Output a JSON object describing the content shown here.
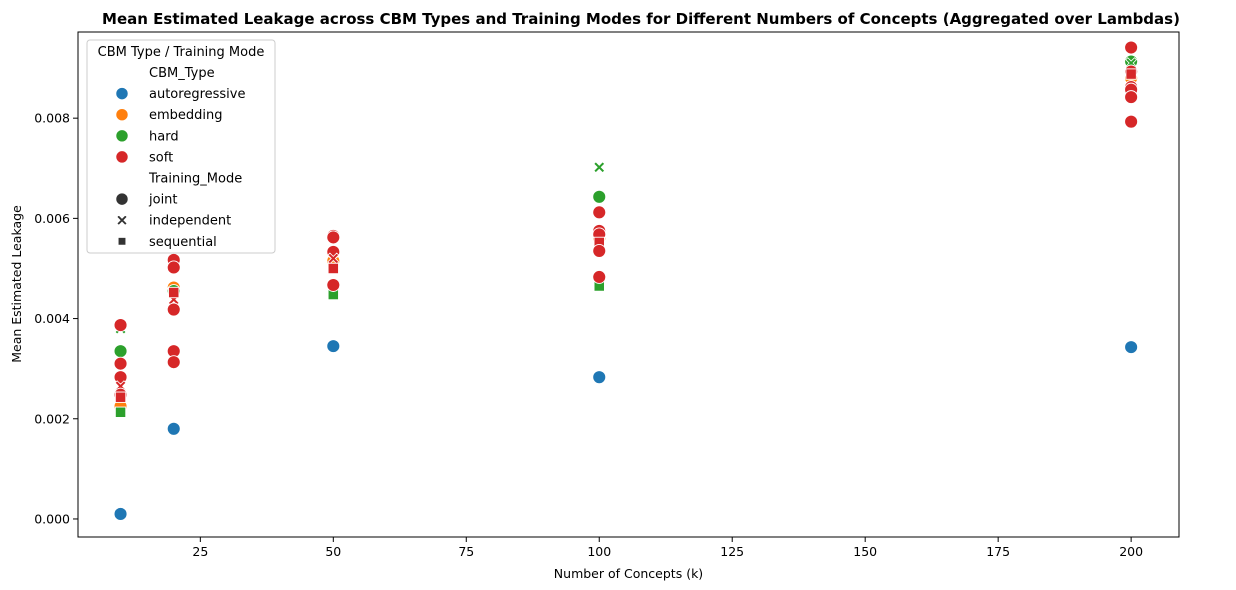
{
  "chart_data": {
    "type": "scatter",
    "title": "Mean Estimated Leakage across CBM Types and Training Modes for Different Numbers of Concepts (Aggregated over Lambdas)",
    "xlabel": "Number of Concepts (k)",
    "ylabel": "Mean Estimated Leakage",
    "xlim": [
      2,
      209
    ],
    "ylim": [
      -0.00036,
      0.00972
    ],
    "x_ticks": [
      25,
      50,
      75,
      100,
      125,
      150,
      175,
      200
    ],
    "y_ticks": [
      0.0,
      0.002,
      0.004,
      0.006,
      0.008
    ],
    "y_tick_labels": [
      "0.000",
      "0.002",
      "0.004",
      "0.006",
      "0.008"
    ],
    "grid": false,
    "legend": {
      "title": "CBM Type / Training Mode",
      "placement": "top-left",
      "hue_title": "CBM_Type",
      "style_title": "Training_Mode",
      "hue_entries": [
        {
          "label": "autoregressive",
          "color": "#1f77b4"
        },
        {
          "label": "embedding",
          "color": "#ff7f0e"
        },
        {
          "label": "hard",
          "color": "#2ca02c"
        },
        {
          "label": "soft",
          "color": "#d62728"
        }
      ],
      "style_entries": [
        {
          "label": "joint",
          "marker": "circle"
        },
        {
          "label": "independent",
          "marker": "x"
        },
        {
          "label": "sequential",
          "marker": "square"
        }
      ]
    },
    "colors": {
      "autoregressive": "#1f77b4",
      "embedding": "#ff7f0e",
      "hard": "#2ca02c",
      "soft": "#d62728"
    },
    "points": [
      {
        "x": 10,
        "y": 0.0001,
        "type": "autoregressive",
        "mode": "joint"
      },
      {
        "x": 20,
        "y": 0.0018,
        "type": "autoregressive",
        "mode": "joint"
      },
      {
        "x": 50,
        "y": 0.00345,
        "type": "autoregressive",
        "mode": "joint"
      },
      {
        "x": 100,
        "y": 0.00283,
        "type": "autoregressive",
        "mode": "joint"
      },
      {
        "x": 200,
        "y": 0.00343,
        "type": "autoregressive",
        "mode": "joint"
      },
      {
        "x": 10,
        "y": 0.00225,
        "type": "embedding",
        "mode": "joint"
      },
      {
        "x": 20,
        "y": 0.00462,
        "type": "embedding",
        "mode": "joint"
      },
      {
        "x": 50,
        "y": 0.00515,
        "type": "embedding",
        "mode": "joint"
      },
      {
        "x": 100,
        "y": 0.0056,
        "type": "embedding",
        "mode": "joint"
      },
      {
        "x": 200,
        "y": 0.0088,
        "type": "embedding",
        "mode": "joint"
      },
      {
        "x": 10,
        "y": 0.0038,
        "type": "hard",
        "mode": "independent"
      },
      {
        "x": 10,
        "y": 0.00335,
        "type": "hard",
        "mode": "joint"
      },
      {
        "x": 10,
        "y": 0.00213,
        "type": "hard",
        "mode": "sequential"
      },
      {
        "x": 20,
        "y": 0.00455,
        "type": "hard",
        "mode": "joint"
      },
      {
        "x": 50,
        "y": 0.00448,
        "type": "hard",
        "mode": "sequential"
      },
      {
        "x": 100,
        "y": 0.00702,
        "type": "hard",
        "mode": "independent"
      },
      {
        "x": 100,
        "y": 0.00643,
        "type": "hard",
        "mode": "joint"
      },
      {
        "x": 100,
        "y": 0.00465,
        "type": "hard",
        "mode": "sequential"
      },
      {
        "x": 200,
        "y": 0.00913,
        "type": "hard",
        "mode": "joint"
      },
      {
        "x": 200,
        "y": 0.0091,
        "type": "hard",
        "mode": "independent"
      },
      {
        "x": 10,
        "y": 0.00387,
        "type": "soft",
        "mode": "joint"
      },
      {
        "x": 10,
        "y": 0.0031,
        "type": "soft",
        "mode": "joint"
      },
      {
        "x": 10,
        "y": 0.00283,
        "type": "soft",
        "mode": "joint"
      },
      {
        "x": 10,
        "y": 0.00265,
        "type": "soft",
        "mode": "independent"
      },
      {
        "x": 10,
        "y": 0.00248,
        "type": "soft",
        "mode": "joint"
      },
      {
        "x": 10,
        "y": 0.00243,
        "type": "soft",
        "mode": "sequential"
      },
      {
        "x": 20,
        "y": 0.00517,
        "type": "soft",
        "mode": "joint"
      },
      {
        "x": 20,
        "y": 0.00502,
        "type": "soft",
        "mode": "joint"
      },
      {
        "x": 20,
        "y": 0.00438,
        "type": "soft",
        "mode": "independent"
      },
      {
        "x": 20,
        "y": 0.00452,
        "type": "soft",
        "mode": "sequential"
      },
      {
        "x": 20,
        "y": 0.00418,
        "type": "soft",
        "mode": "joint"
      },
      {
        "x": 20,
        "y": 0.00335,
        "type": "soft",
        "mode": "joint"
      },
      {
        "x": 20,
        "y": 0.00313,
        "type": "soft",
        "mode": "joint"
      },
      {
        "x": 50,
        "y": 0.00565,
        "type": "soft",
        "mode": "joint"
      },
      {
        "x": 50,
        "y": 0.00562,
        "type": "soft",
        "mode": "joint"
      },
      {
        "x": 50,
        "y": 0.00533,
        "type": "soft",
        "mode": "joint"
      },
      {
        "x": 50,
        "y": 0.0052,
        "type": "soft",
        "mode": "independent"
      },
      {
        "x": 50,
        "y": 0.005,
        "type": "soft",
        "mode": "sequential"
      },
      {
        "x": 50,
        "y": 0.00467,
        "type": "soft",
        "mode": "joint"
      },
      {
        "x": 100,
        "y": 0.00612,
        "type": "soft",
        "mode": "joint"
      },
      {
        "x": 100,
        "y": 0.00575,
        "type": "soft",
        "mode": "joint"
      },
      {
        "x": 100,
        "y": 0.00568,
        "type": "soft",
        "mode": "joint"
      },
      {
        "x": 100,
        "y": 0.00552,
        "type": "soft",
        "mode": "sequential"
      },
      {
        "x": 100,
        "y": 0.00535,
        "type": "soft",
        "mode": "joint"
      },
      {
        "x": 100,
        "y": 0.00483,
        "type": "soft",
        "mode": "joint"
      },
      {
        "x": 200,
        "y": 0.00941,
        "type": "soft",
        "mode": "joint"
      },
      {
        "x": 200,
        "y": 0.00893,
        "type": "soft",
        "mode": "joint"
      },
      {
        "x": 200,
        "y": 0.00888,
        "type": "soft",
        "mode": "sequential"
      },
      {
        "x": 200,
        "y": 0.00862,
        "type": "soft",
        "mode": "joint"
      },
      {
        "x": 200,
        "y": 0.00857,
        "type": "soft",
        "mode": "joint"
      },
      {
        "x": 200,
        "y": 0.00842,
        "type": "soft",
        "mode": "joint"
      },
      {
        "x": 200,
        "y": 0.00793,
        "type": "soft",
        "mode": "joint"
      }
    ]
  }
}
